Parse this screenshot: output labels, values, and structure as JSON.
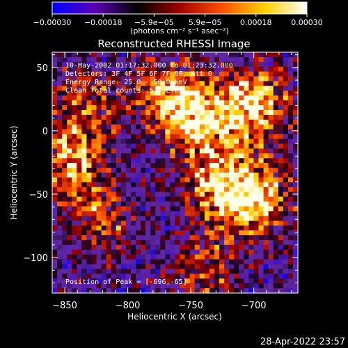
{
  "chart_data": {
    "type": "heatmap",
    "title": "Reconstructed RHESSI Image",
    "xlabel": "Heliocentric X (arcsec)",
    "ylabel": "Heliocentric Y (arcsec)",
    "xlim": [
      -860,
      -665
    ],
    "ylim": [
      -128,
      62
    ],
    "xticks": [
      -850,
      -800,
      -750,
      -700
    ],
    "xtick_labels": [
      "−850",
      "−800",
      "−750",
      "−700"
    ],
    "yticks": [
      50,
      0,
      -50,
      -100
    ],
    "ytick_labels": [
      "50",
      "0",
      "−50",
      "−100"
    ],
    "colorbar": {
      "range": [
        -0.0003,
        0.0003
      ],
      "tick_labels": [
        "−0.00030",
        "−0.00018",
        "−5.9e−05",
        "5.9e−05",
        "0.00018",
        "0.00030"
      ],
      "unit_label": "(photons cm⁻² s⁻¹ asec⁻²)",
      "colors": [
        "#0000ff",
        "#5a00b4",
        "#000000",
        "#a00000",
        "#ff5000",
        "#ffd000",
        "#ffffff"
      ]
    },
    "info_lines": [
      "10-May-2002 01:17:32.000 to 01:23:32.000",
      "Detectors: 3F 4F 5F 6F 7F 8F, Att 0",
      "Energy Range: 25.0 - 50.0 keV",
      "Clean    Total counts: 5.73E+03"
    ],
    "peak_label": "Position of Peak = [-696,-65]",
    "peak_position": [
      -696,
      -65
    ],
    "background_color": "#5a28a0",
    "bright_regions": [
      {
        "x": -700,
        "y": 20,
        "intensity": 1.0
      },
      {
        "x": -700,
        "y": -55,
        "intensity": 1.0
      },
      {
        "x": -745,
        "y": 10,
        "intensity": 0.85
      },
      {
        "x": -730,
        "y": -40,
        "intensity": 0.8
      },
      {
        "x": -770,
        "y": 30,
        "intensity": 0.7
      },
      {
        "x": -845,
        "y": -25,
        "intensity": 0.75
      },
      {
        "x": -835,
        "y": 20,
        "intensity": 0.6
      },
      {
        "x": -820,
        "y": -70,
        "intensity": 0.55
      },
      {
        "x": -740,
        "y": -110,
        "intensity": 0.5
      }
    ]
  },
  "footer": {
    "timestamp": "28-Apr-2022 23:57"
  }
}
